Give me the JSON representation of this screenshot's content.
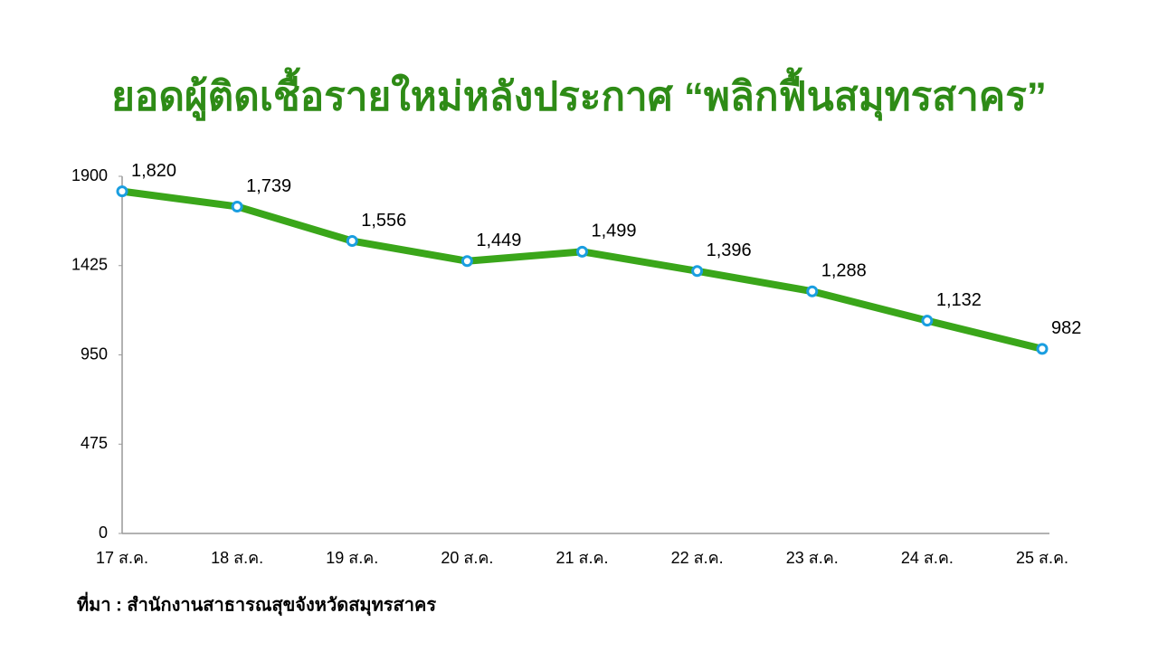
{
  "chart_data": {
    "type": "line",
    "title": "ยอดผู้ติดเชื้อรายใหม่หลังประกาศ “พลิกฟื้นสมุทรสาคร”",
    "categories": [
      "17 ส.ค.",
      "18 ส.ค.",
      "19 ส.ค.",
      "20 ส.ค.",
      "21 ส.ค.",
      "22 ส.ค.",
      "23 ส.ค.",
      "24 ส.ค.",
      "25 ส.ค."
    ],
    "values": [
      1820,
      1739,
      1556,
      1449,
      1499,
      1396,
      1288,
      1132,
      982
    ],
    "value_labels": [
      "1,820",
      "1,739",
      "1,556",
      "1,449",
      "1,499",
      "1,396",
      "1,288",
      "1,132",
      "982"
    ],
    "color": "#3aa61a",
    "marker_color": "#1a9ee0",
    "ylim": [
      0,
      1900
    ],
    "yticks": [
      0,
      475,
      950,
      1425,
      1900
    ],
    "grid": false,
    "source": "ที่มา : สำนักงานสาธารณสุขจังหวัดสมุทรสาคร"
  }
}
